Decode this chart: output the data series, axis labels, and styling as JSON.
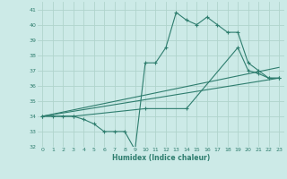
{
  "xlabel": "Humidex (Indice chaleur)",
  "background_color": "#cceae7",
  "grid_color": "#b0d4cc",
  "line_color": "#2e7d6e",
  "xlim": [
    -0.5,
    23.5
  ],
  "ylim": [
    32,
    41.5
  ],
  "xticks": [
    0,
    1,
    2,
    3,
    4,
    5,
    6,
    7,
    8,
    9,
    10,
    11,
    12,
    13,
    14,
    15,
    16,
    17,
    18,
    19,
    20,
    21,
    22,
    23
  ],
  "yticks": [
    32,
    33,
    34,
    35,
    36,
    37,
    38,
    39,
    40,
    41
  ],
  "curve1_x": [
    0,
    1,
    2,
    3,
    4,
    5,
    6,
    7,
    8,
    9,
    10,
    11,
    12,
    13,
    14,
    15,
    16,
    17,
    18,
    19,
    20,
    21,
    22,
    23
  ],
  "curve1_y": [
    34,
    34,
    34,
    34,
    33.8,
    33.5,
    33,
    33,
    33,
    31.8,
    37.5,
    37.5,
    38.5,
    40.8,
    40.3,
    40,
    40.5,
    40,
    39.5,
    39.5,
    37.5,
    37,
    36.5,
    36.5
  ],
  "curve2_x": [
    0,
    3,
    10,
    14,
    19,
    20,
    21,
    22,
    23
  ],
  "curve2_y": [
    34,
    34,
    34.5,
    34.5,
    38.5,
    37,
    36.8,
    36.5,
    36.5
  ],
  "curve3_x": [
    0,
    23
  ],
  "curve3_y": [
    34,
    36.5
  ],
  "curve4_x": [
    0,
    23
  ],
  "curve4_y": [
    34,
    37.2
  ]
}
